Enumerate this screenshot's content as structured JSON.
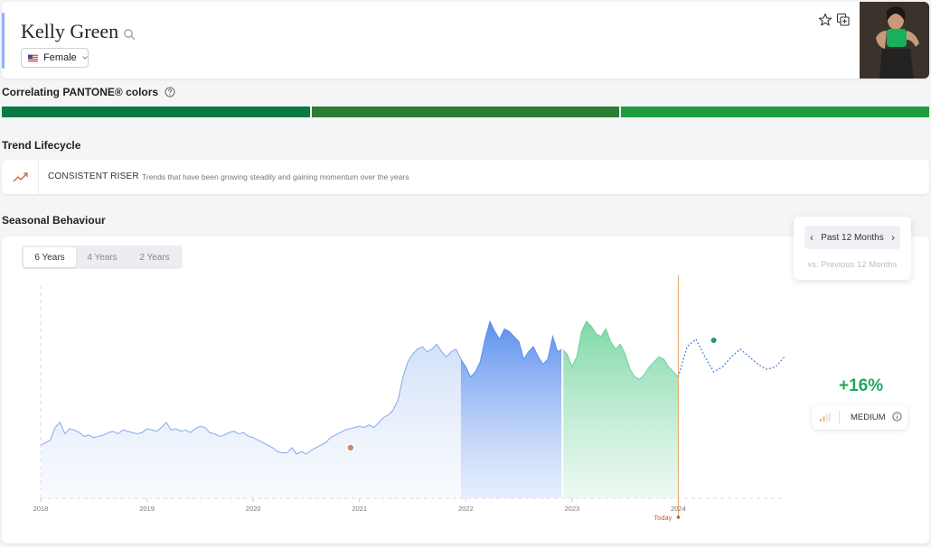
{
  "header": {
    "title": "Kelly Green",
    "gender": "Female",
    "icons": [
      "star-icon",
      "add-to-collection-icon",
      "search-icon",
      "chevron-down-icon"
    ]
  },
  "pantone": {
    "title": "Correlating PANTONE® colors",
    "swatches": [
      "#0a7a44",
      "#2d7d32",
      "#1e9c3e"
    ]
  },
  "lifecycle": {
    "title": "Trend Lifecycle",
    "name": "CONSISTENT RISER",
    "description": "Trends that have been growing steadily and gaining momentum over the years"
  },
  "seasonal": {
    "title": "Seasonal Behaviour",
    "tabs": [
      "6 Years",
      "4 Years",
      "2 Years"
    ],
    "active_tab": "6 Years",
    "period": "Past 12 Months",
    "comparison": "vs. Previous 12 Months",
    "change": "+16%",
    "level": "MEDIUM",
    "today_label": "Today"
  },
  "chart_data": {
    "type": "area",
    "x_ticks": [
      "2018",
      "2019",
      "2020",
      "2021",
      "2022",
      "2023",
      "2024"
    ],
    "x_range": [
      "2018-01",
      "2024-12"
    ],
    "series": [
      {
        "values": [
          42,
          44,
          46,
          56,
          60,
          51,
          55,
          54,
          52,
          49,
          50,
          48,
          49,
          50,
          52,
          53,
          51,
          54,
          53,
          52,
          51,
          52,
          55,
          54,
          53,
          56,
          60,
          54,
          55,
          53,
          54,
          52,
          55,
          57,
          56,
          52,
          51,
          49,
          50,
          52,
          53,
          51,
          52,
          49,
          48,
          46,
          44,
          42,
          40,
          37,
          36,
          36,
          40,
          35,
          37,
          35,
          38,
          40,
          42,
          44,
          48,
          50,
          52,
          54,
          55,
          56,
          57,
          56,
          58,
          56,
          60,
          64,
          66,
          70,
          78,
          96,
          108,
          114,
          118,
          120,
          116,
          118,
          122,
          116,
          112,
          116,
          118,
          110,
          104,
          96,
          100,
          108,
          126,
          140,
          132,
          126,
          134,
          132,
          128,
          124,
          110,
          116,
          120,
          112,
          106,
          110,
          128,
          116,
          118,
          114,
          104,
          112,
          132,
          140,
          136,
          130,
          128,
          134,
          124,
          118,
          122,
          114,
          102,
          96,
          94,
          98,
          104,
          108,
          112,
          110,
          104,
          100,
          96
        ]
      },
      {
        "name": "",
        "values": [
          120,
          126,
          112,
          100,
          104,
          112,
          118,
          112,
          106,
          102,
          104,
          112
        ]
      }
    ],
    "highlight_points": [
      {
        "x": "2020-12",
        "y": 40
      },
      {
        "x": "2024-05",
        "y": 125
      }
    ],
    "colors": {
      "past": "#c6d7f5",
      "recent": "#5b8fee",
      "current": "#7fd8a7",
      "forecast": "#3f7fd6",
      "today_line": "#e8a66a",
      "positive": "#20a95c"
    }
  }
}
